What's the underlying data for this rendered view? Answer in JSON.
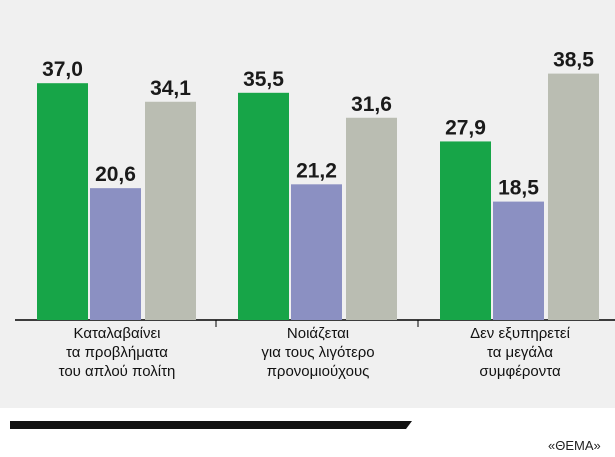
{
  "chart_data": {
    "type": "bar",
    "categories": [
      "Καταλαβαίνει\nτα προβλήματα\nτου απλού πολίτη",
      "Νοιάζεται\nγια τους λιγότερο\nπρονομιούχους",
      "Δεν εξυπηρετεί\nτα μεγάλα\nσυμφέροντα"
    ],
    "series": [
      {
        "color": "#17a548",
        "values": [
          37.0,
          35.5,
          27.9
        ],
        "value_labels": [
          "37,0",
          "35,5",
          "27,9"
        ]
      },
      {
        "color": "#8b90c2",
        "values": [
          20.6,
          21.2,
          18.5
        ],
        "value_labels": [
          "20,6",
          "21,2",
          "18,5"
        ]
      },
      {
        "color": "#babdb2",
        "values": [
          34.1,
          31.6,
          38.5
        ],
        "value_labels": [
          "34,1",
          "31,6",
          "38,5"
        ]
      }
    ],
    "ylim": [
      0,
      50
    ],
    "source": "«ΘΕΜΑ»"
  }
}
